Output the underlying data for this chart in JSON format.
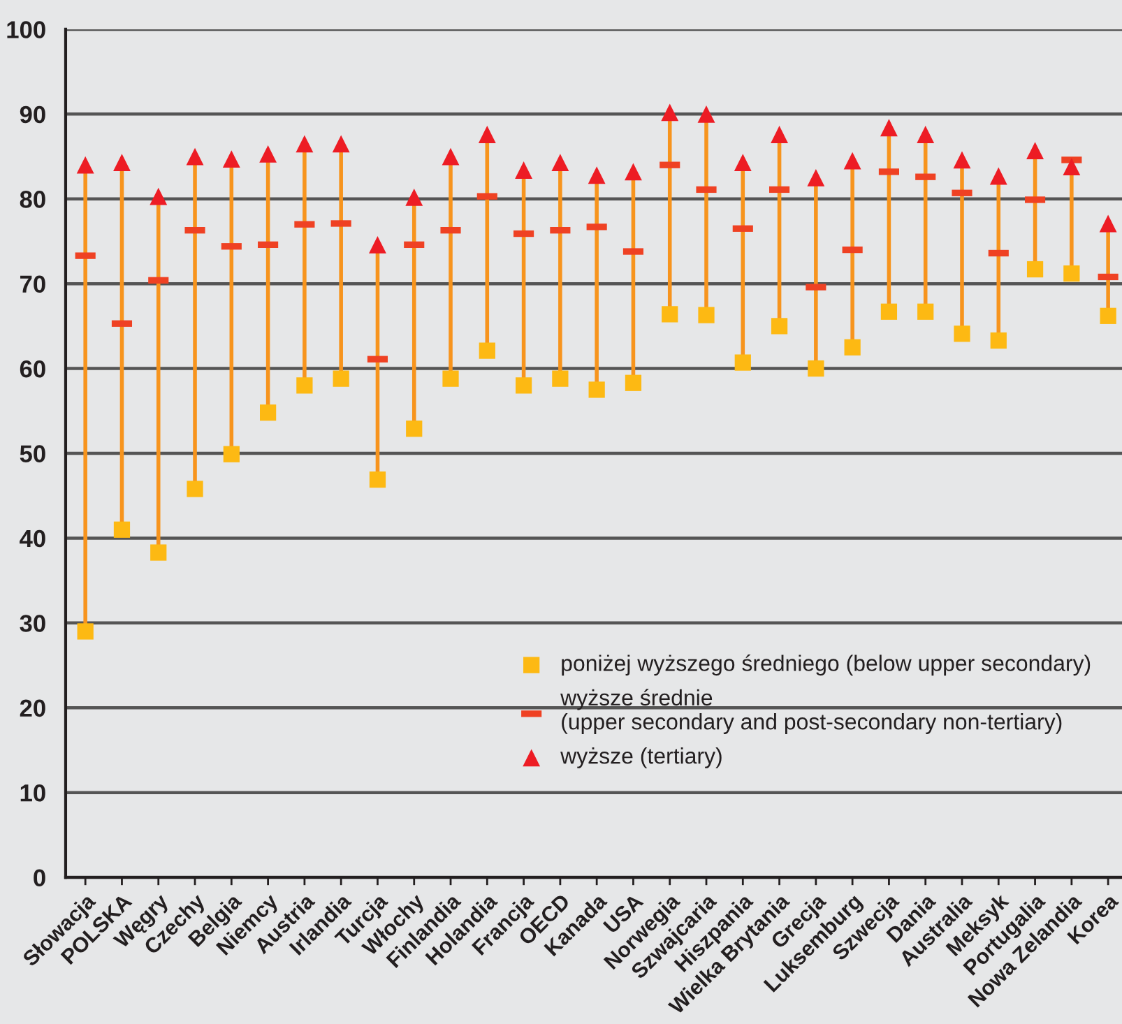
{
  "chart_data": {
    "type": "scatter",
    "categories": [
      "Słowacja",
      "POLSKA",
      "Węgry",
      "Czechy",
      "Belgia",
      "Niemcy",
      "Austria",
      "Irlandia",
      "Turcja",
      "Włochy",
      "Finlandia",
      "Holandia",
      "Francja",
      "OECD",
      "Kanada",
      "USA",
      "Norwegia",
      "Szwajcaria",
      "Hiszpania",
      "Wielka Brytania",
      "Grecja",
      "Luksemburg",
      "Szwecja",
      "Dania",
      "Australia",
      "Meksyk",
      "Portugalia",
      "Nowa Zelandia",
      "Korea"
    ],
    "series": [
      {
        "name": "poniżej wyższego średniego (below upper secondary)",
        "color": "#fdb913",
        "marker": "square",
        "values": [
          29,
          41,
          38.3,
          45.8,
          49.9,
          54.8,
          58,
          58.8,
          46.9,
          52.9,
          58.8,
          62.1,
          58,
          58.8,
          57.5,
          58.3,
          66.4,
          66.3,
          60.7,
          65,
          60,
          62.5,
          66.7,
          66.7,
          64.1,
          63.3,
          71.7,
          71.2,
          66.2
        ]
      },
      {
        "name": "wyższe średnie\n(upper secondary and post-secondary non-tertiary)",
        "color": "#ef4123",
        "values": [
          73.3,
          65.3,
          70.4,
          76.3,
          74.4,
          74.6,
          77,
          77.1,
          61.1,
          74.6,
          76.3,
          80.3,
          75.9,
          76.3,
          76.7,
          73.8,
          84,
          81.1,
          76.5,
          81.1,
          69.6,
          74,
          83.2,
          82.6,
          80.7,
          73.6,
          79.9,
          84.6,
          70.8
        ]
      },
      {
        "name": "wyższe (tertiary)",
        "color": "#ed1c24",
        "marker": "triangle",
        "values": [
          84,
          84.3,
          80.3,
          85,
          84.7,
          85.3,
          86.5,
          86.5,
          74.6,
          80.2,
          85,
          87.6,
          83.4,
          84.3,
          82.8,
          83.2,
          90.2,
          90,
          84.3,
          87.6,
          82.5,
          84.5,
          88.4,
          87.6,
          84.6,
          82.7,
          85.7,
          83.8,
          77.1
        ]
      }
    ],
    "ylim": [
      0,
      100
    ],
    "yticks": [
      0,
      10,
      20,
      30,
      40,
      50,
      60,
      70,
      80,
      90,
      100
    ],
    "grid": "y",
    "legend": "bottom right"
  }
}
